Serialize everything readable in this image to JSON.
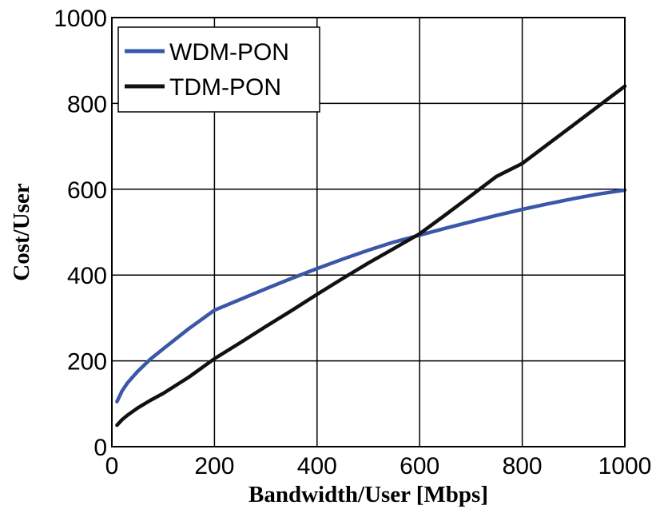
{
  "chart_data": {
    "type": "line",
    "xlabel": "Bandwidth/User [Mbps]",
    "ylabel": "Cost/User",
    "xlim": [
      0,
      1000
    ],
    "ylim": [
      0,
      1000
    ],
    "x_ticks": [
      "0",
      "200",
      "400",
      "600",
      "800",
      "1000"
    ],
    "y_ticks": [
      "0",
      "200",
      "400",
      "600",
      "800",
      "1000"
    ],
    "grid": true,
    "legend_position": "top-left",
    "series": [
      {
        "name": "WDM-PON",
        "color": "#3a57a8",
        "x": [
          10,
          20,
          30,
          50,
          75,
          100,
          150,
          200,
          250,
          300,
          350,
          400,
          450,
          500,
          550,
          600,
          650,
          700,
          750,
          800,
          850,
          900,
          950,
          1000
        ],
        "y": [
          105,
          130,
          148,
          175,
          204,
          228,
          275,
          318,
          343,
          368,
          392,
          415,
          437,
          458,
          477,
          493,
          509,
          524,
          539,
          553,
          566,
          578,
          589,
          598
        ]
      },
      {
        "name": "TDM-PON",
        "color": "#111111",
        "x": [
          10,
          20,
          30,
          50,
          75,
          100,
          150,
          200,
          250,
          300,
          350,
          400,
          450,
          500,
          550,
          600,
          650,
          700,
          750,
          800,
          850,
          900,
          950,
          1000
        ],
        "y": [
          50,
          63,
          73,
          90,
          108,
          124,
          162,
          205,
          242,
          280,
          317,
          355,
          392,
          428,
          462,
          496,
          540,
          585,
          630,
          660,
          705,
          750,
          795,
          840
        ]
      }
    ]
  }
}
